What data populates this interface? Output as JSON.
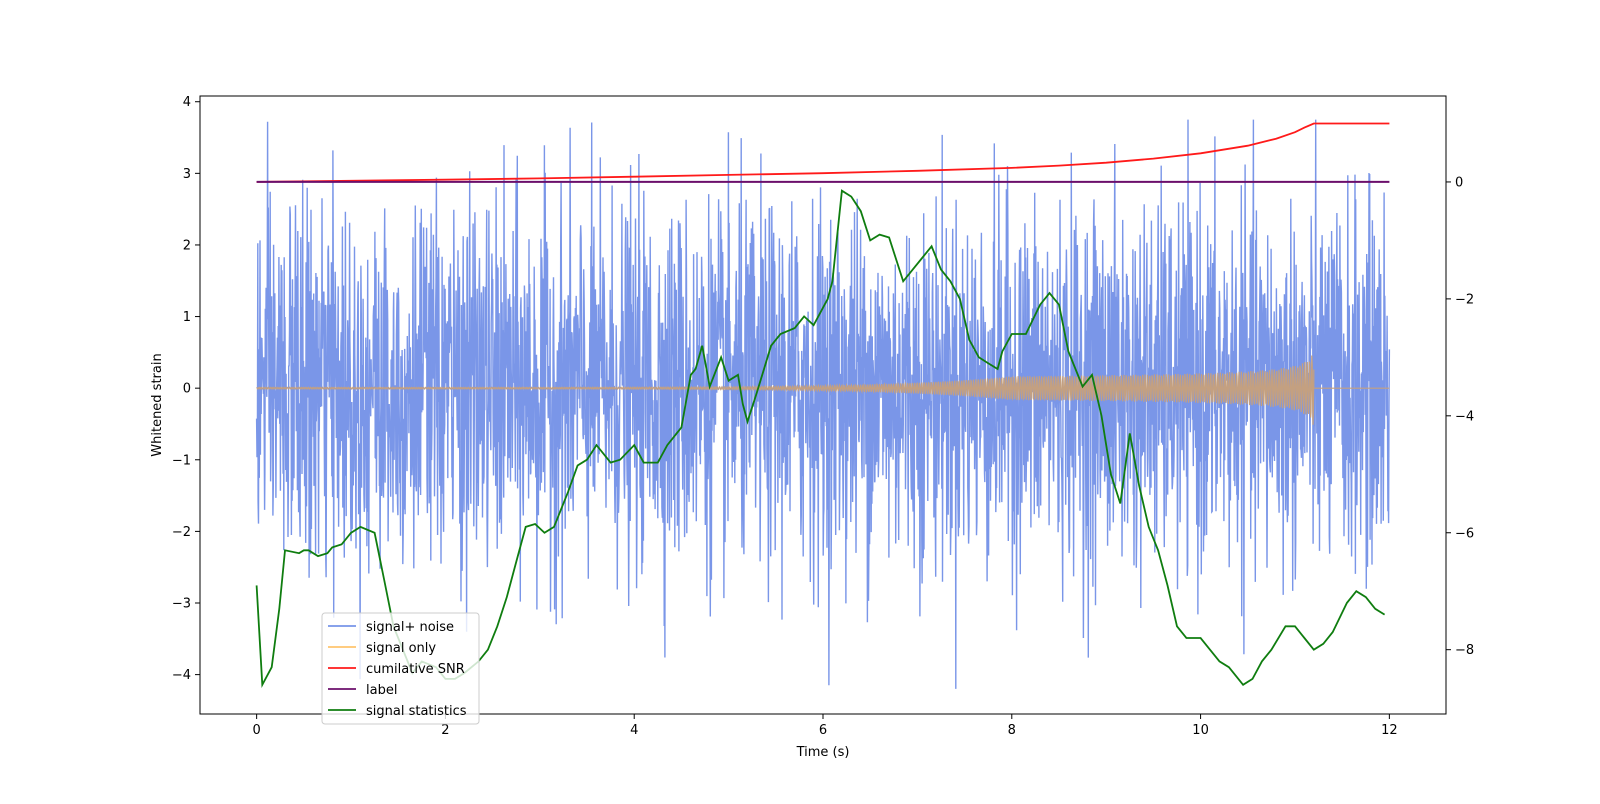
{
  "chart_data": {
    "type": "line",
    "title": "",
    "xlabel": "Time (s)",
    "ylabel": "Whitened strain",
    "y2label": "",
    "xlim": [
      -0.6,
      12.6
    ],
    "ylim": [
      -4.55,
      4.08
    ],
    "y2lim": [
      -9.1,
      1.47
    ],
    "xticks": [
      0,
      2,
      4,
      6,
      8,
      10,
      12
    ],
    "yticks": [
      -4,
      -3,
      -2,
      -1,
      0,
      1,
      2,
      3,
      4
    ],
    "y2ticks": [
      -8,
      -6,
      -4,
      -2,
      0
    ],
    "legend_position": "lower-left",
    "legend": [
      "signal+ noise",
      "signal only",
      "cumilative SNR",
      "label",
      "signal statistics"
    ],
    "colors": {
      "noise": "#7794e8",
      "signal": "#c4a080",
      "signal_legend": "#ffc46e",
      "snr": "#ff1a1a",
      "label": "#6b0f6b",
      "stats": "#0f7d0f"
    },
    "series": [
      {
        "name": "signal+ noise",
        "axis": "left",
        "note": "dense whitened noise, roughly -2.2..2.2 with spikes to ~3.7 and ~-4.2",
        "x_range": [
          0,
          12
        ],
        "points": 3000,
        "amplitude": 1.25
      },
      {
        "name": "signal only",
        "axis": "left",
        "note": "chirp near zero growing to ~0.55 amplitude, ends at 11.2 s",
        "x_range": [
          0,
          11.2
        ],
        "final_amplitude": 0.55
      },
      {
        "name": "cumilative SNR",
        "axis": "right",
        "x": [
          0,
          1,
          2,
          3,
          4,
          5,
          6,
          7,
          8,
          8.5,
          9,
          9.5,
          10,
          10.5,
          10.8,
          11,
          11.1,
          11.2,
          12
        ],
        "values": [
          0.0,
          0.02,
          0.04,
          0.06,
          0.09,
          0.12,
          0.15,
          0.19,
          0.24,
          0.28,
          0.33,
          0.4,
          0.49,
          0.62,
          0.74,
          0.85,
          0.93,
          1.0,
          1.0
        ]
      },
      {
        "name": "label",
        "axis": "right",
        "x": [
          0,
          12
        ],
        "values": [
          0.0,
          0.0
        ]
      },
      {
        "name": "signal statistics",
        "axis": "right",
        "x": [
          0,
          0.06,
          0.16,
          0.24,
          0.3,
          0.45,
          0.5,
          0.55,
          0.65,
          0.75,
          0.8,
          0.9,
          1.0,
          1.1,
          1.25,
          1.35,
          1.45,
          1.55,
          1.65,
          1.75,
          1.9,
          2.0,
          2.1,
          2.2,
          2.35,
          2.45,
          2.55,
          2.65,
          2.75,
          2.85,
          2.95,
          3.05,
          3.15,
          3.3,
          3.4,
          3.5,
          3.6,
          3.75,
          3.85,
          4.0,
          4.1,
          4.25,
          4.35,
          4.5,
          4.6,
          4.65,
          4.72,
          4.8,
          4.92,
          5.0,
          5.1,
          5.15,
          5.2,
          5.3,
          5.45,
          5.55,
          5.7,
          5.8,
          5.9,
          6.05,
          6.1,
          6.2,
          6.3,
          6.4,
          6.5,
          6.6,
          6.7,
          6.85,
          6.95,
          7.05,
          7.15,
          7.25,
          7.35,
          7.45,
          7.55,
          7.65,
          7.75,
          7.85,
          7.9,
          8.0,
          8.15,
          8.3,
          8.4,
          8.5,
          8.6,
          8.75,
          8.85,
          8.95,
          9.05,
          9.15,
          9.25,
          9.35,
          9.45,
          9.55,
          9.65,
          9.75,
          9.85,
          10.0,
          10.1,
          10.2,
          10.3,
          10.45,
          10.55,
          10.65,
          10.75,
          10.9,
          11.0,
          11.1,
          11.2,
          11.3,
          11.4,
          11.55,
          11.65,
          11.75,
          11.85,
          11.95
        ],
        "values": [
          -6.9,
          -8.6,
          -8.3,
          -7.3,
          -6.3,
          -6.35,
          -6.3,
          -6.3,
          -6.4,
          -6.35,
          -6.25,
          -6.2,
          -6.0,
          -5.9,
          -6.0,
          -6.8,
          -7.6,
          -8.0,
          -8.4,
          -8.2,
          -8.3,
          -8.5,
          -8.5,
          -8.4,
          -8.2,
          -8.0,
          -7.6,
          -7.1,
          -6.5,
          -5.9,
          -5.85,
          -6.0,
          -5.9,
          -5.3,
          -4.85,
          -4.75,
          -4.5,
          -4.8,
          -4.75,
          -4.5,
          -4.8,
          -4.8,
          -4.5,
          -4.2,
          -3.3,
          -3.2,
          -2.8,
          -3.5,
          -3.0,
          -3.4,
          -3.3,
          -3.8,
          -4.1,
          -3.6,
          -2.8,
          -2.6,
          -2.5,
          -2.3,
          -2.45,
          -2.0,
          -1.7,
          -0.15,
          -0.25,
          -0.5,
          -1.0,
          -0.9,
          -0.95,
          -1.7,
          -1.5,
          -1.3,
          -1.1,
          -1.5,
          -1.7,
          -2.0,
          -2.7,
          -3.0,
          -3.1,
          -3.2,
          -2.9,
          -2.6,
          -2.6,
          -2.1,
          -1.9,
          -2.1,
          -2.9,
          -3.5,
          -3.3,
          -4.0,
          -5.0,
          -5.5,
          -4.3,
          -5.2,
          -5.9,
          -6.3,
          -6.9,
          -7.6,
          -7.8,
          -7.8,
          -8.0,
          -8.2,
          -8.3,
          -8.6,
          -8.5,
          -8.2,
          -8.0,
          -7.6,
          -7.6,
          -7.8,
          -8.0,
          -7.9,
          -7.7,
          -7.2,
          -7.0,
          -7.1,
          -7.3,
          -7.4
        ]
      }
    ]
  }
}
